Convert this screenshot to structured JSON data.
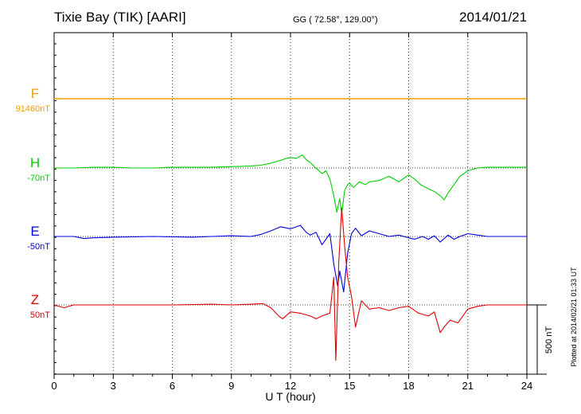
{
  "header": {
    "station": "Tixie Bay (TIK)  [AARI]",
    "coords": "GG ( 72.58°, 129.00°)",
    "date": "2014/01/21"
  },
  "side_note": "Plotted at 2014/02/21 01:33 UT",
  "scale_label": "500 nT",
  "colors": {
    "F": "#f0a000",
    "H": "#00d000",
    "E": "#0000e0",
    "Z": "#e00000"
  },
  "chart_data": {
    "type": "line",
    "title": "Tixie Bay (TIK)  [AARI]",
    "xlabel": "U T (hour)",
    "xlim": [
      0,
      24
    ],
    "xticks": [
      "0",
      "3",
      "6",
      "9",
      "12",
      "15",
      "18",
      "21",
      "24"
    ],
    "grid": "dotted vertical at every 3 h; dotted baseline per component",
    "scale_bar_nT": 500,
    "series": [
      {
        "name": "F",
        "baseline_label": "91460nT",
        "x": [
          0,
          24
        ],
        "y": [
          0,
          0
        ]
      },
      {
        "name": "H",
        "baseline_label": "-70nT",
        "x": [
          0,
          1,
          2,
          3,
          4,
          5,
          6,
          7,
          8,
          9,
          10,
          10.5,
          11,
          11.5,
          11.8,
          12,
          12.3,
          12.6,
          12.8,
          13,
          13.2,
          13.4,
          13.6,
          13.8,
          14.0,
          14.2,
          14.35,
          14.5,
          14.6,
          14.75,
          14.9,
          15.0,
          15.2,
          15.5,
          15.8,
          16,
          16.5,
          17,
          17.5,
          18,
          18.3,
          18.6,
          19,
          19.3,
          19.6,
          19.8,
          20.0,
          20.3,
          20.6,
          21,
          21.5,
          22,
          23,
          24
        ],
        "y": [
          0,
          0,
          5,
          5,
          0,
          0,
          5,
          5,
          5,
          10,
          15,
          20,
          35,
          55,
          70,
          75,
          70,
          95,
          60,
          40,
          10,
          -15,
          -40,
          -20,
          -80,
          -200,
          -320,
          -220,
          -330,
          -160,
          -120,
          -110,
          -140,
          -100,
          -120,
          -100,
          -90,
          -60,
          -100,
          -50,
          -80,
          -120,
          -150,
          -170,
          -200,
          -230,
          -180,
          -120,
          -60,
          -20,
          0,
          5,
          5,
          5
        ]
      },
      {
        "name": "E",
        "baseline_label": "-50nT",
        "x": [
          0,
          1,
          1.5,
          2,
          3,
          5,
          7,
          8,
          9,
          10,
          10.5,
          11,
          11.5,
          12,
          12.5,
          12.8,
          13,
          13.3,
          13.6,
          14.0,
          14.2,
          14.4,
          14.5,
          14.7,
          14.9,
          15.1,
          15.3,
          15.6,
          16,
          16.5,
          17,
          17.5,
          18,
          18.3,
          18.7,
          19,
          19.3,
          19.6,
          20,
          20.3,
          20.6,
          21,
          21.5,
          22,
          23,
          24
        ],
        "y": [
          0,
          0,
          -15,
          -10,
          -5,
          0,
          -5,
          0,
          5,
          0,
          15,
          40,
          70,
          55,
          80,
          30,
          10,
          30,
          -60,
          20,
          -200,
          -360,
          -250,
          -400,
          -120,
          20,
          60,
          5,
          40,
          20,
          0,
          10,
          -10,
          -20,
          0,
          -20,
          5,
          -40,
          10,
          -20,
          0,
          20,
          10,
          0,
          0,
          0
        ]
      },
      {
        "name": "Z",
        "baseline_label": "50nT",
        "x": [
          0,
          0.5,
          1,
          2,
          4,
          6,
          8,
          9,
          10,
          10.6,
          11,
          11.4,
          11.6,
          12,
          12.5,
          13,
          13.3,
          13.6,
          14.0,
          14.2,
          14.3,
          14.45,
          14.6,
          14.75,
          14.9,
          15.1,
          15.3,
          15.6,
          16,
          16.5,
          17,
          17.5,
          18,
          18.5,
          19,
          19.3,
          19.6,
          19.8,
          20.1,
          20.5,
          21,
          21.5,
          22,
          23,
          24
        ],
        "y": [
          0,
          -20,
          0,
          0,
          0,
          0,
          5,
          0,
          5,
          10,
          -20,
          -80,
          -100,
          -50,
          -60,
          -80,
          -100,
          -80,
          -60,
          200,
          -400,
          300,
          700,
          420,
          200,
          60,
          -160,
          30,
          -30,
          -20,
          -40,
          -20,
          -10,
          -60,
          -80,
          -50,
          -200,
          -160,
          -110,
          -130,
          -30,
          -10,
          0,
          0,
          0
        ]
      }
    ]
  }
}
